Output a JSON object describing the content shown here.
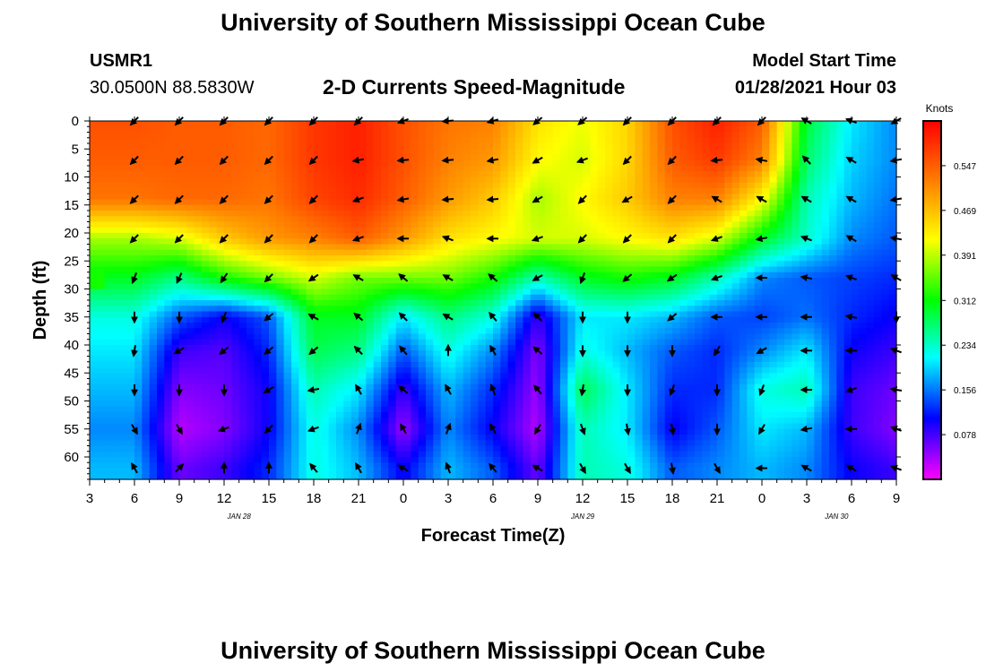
{
  "page": {
    "title_top": "University of Southern Mississippi Ocean Cube",
    "title_bottom": "University of Southern Mississippi Ocean Cube",
    "station_id": "USMR1",
    "station_coords": "30.0500N 88.5830W",
    "plot_title": "2-D Currents Speed-Magnitude",
    "model_start_label": "Model Start Time",
    "model_start_value": "01/28/2021 Hour 03"
  },
  "colors": {
    "arrow": "#000000",
    "colormap": [
      "#ff00ff",
      "#0000ff",
      "#00ffff",
      "#00ff00",
      "#ffff00",
      "#ff8000",
      "#ff0000"
    ]
  },
  "chart_data": {
    "type": "heatmap",
    "title": "2-D Currents Speed-Magnitude",
    "xlabel": "Forecast Time(Z)",
    "ylabel": "Depth (ft)",
    "x_range": [
      0,
      54
    ],
    "y_range": [
      0,
      64
    ],
    "x_ticks": [
      0,
      3,
      6,
      9,
      12,
      15,
      18,
      21,
      24,
      27,
      30,
      33,
      36,
      39,
      42,
      45,
      48,
      51,
      54
    ],
    "x_tick_labels": [
      "3",
      "6",
      "9",
      "12",
      "15",
      "18",
      "21",
      "0",
      "3",
      "6",
      "9",
      "12",
      "15",
      "18",
      "21",
      "0",
      "3",
      "6",
      "9"
    ],
    "y_ticks": [
      0,
      5,
      10,
      15,
      20,
      25,
      30,
      35,
      40,
      45,
      50,
      55,
      60
    ],
    "y_tick_labels": [
      "0",
      "5",
      "10",
      "15",
      "20",
      "25",
      "30",
      "35",
      "40",
      "45",
      "50",
      "55",
      "60"
    ],
    "date_labels": [
      {
        "x_hours": 10,
        "text": "JAN 28"
      },
      {
        "x_hours": 33,
        "text": "JAN 29"
      },
      {
        "x_hours": 50,
        "text": "JAN 30"
      }
    ],
    "colorbar": {
      "unit": "Knots",
      "range": [
        0,
        0.625
      ],
      "ticks": [
        0.078,
        0.156,
        0.234,
        0.312,
        0.391,
        0.469,
        0.547
      ],
      "tick_labels": [
        "0.078",
        "0.156",
        "0.234",
        "0.312",
        "0.391",
        "0.469",
        "0.547"
      ]
    },
    "depth_levels": [
      0,
      7,
      14,
      21,
      28,
      35,
      41,
      48,
      55,
      62
    ],
    "column_hours": [
      3,
      6,
      9,
      12,
      15,
      18,
      21,
      24,
      27,
      30,
      33,
      36,
      39,
      42,
      45,
      48,
      51,
      54
    ],
    "speed_knots": [
      [
        0.56,
        0.55,
        0.55,
        0.54,
        0.58,
        0.6,
        0.56,
        0.53,
        0.52,
        0.44,
        0.41,
        0.45,
        0.56,
        0.6,
        0.55,
        0.29,
        0.2,
        0.16
      ],
      [
        0.55,
        0.55,
        0.55,
        0.54,
        0.58,
        0.6,
        0.56,
        0.52,
        0.5,
        0.42,
        0.4,
        0.45,
        0.55,
        0.58,
        0.52,
        0.27,
        0.19,
        0.16
      ],
      [
        0.53,
        0.54,
        0.54,
        0.53,
        0.57,
        0.59,
        0.55,
        0.5,
        0.46,
        0.38,
        0.42,
        0.46,
        0.52,
        0.52,
        0.42,
        0.24,
        0.18,
        0.15
      ],
      [
        0.38,
        0.4,
        0.46,
        0.5,
        0.52,
        0.55,
        0.5,
        0.44,
        0.42,
        0.4,
        0.4,
        0.42,
        0.44,
        0.4,
        0.3,
        0.23,
        0.16,
        0.14
      ],
      [
        0.3,
        0.26,
        0.32,
        0.36,
        0.4,
        0.36,
        0.36,
        0.36,
        0.32,
        0.24,
        0.3,
        0.32,
        0.3,
        0.24,
        0.16,
        0.14,
        0.13,
        0.12
      ],
      [
        0.22,
        0.14,
        0.1,
        0.14,
        0.3,
        0.3,
        0.2,
        0.26,
        0.22,
        0.08,
        0.2,
        0.2,
        0.18,
        0.14,
        0.13,
        0.15,
        0.12,
        0.1
      ],
      [
        0.2,
        0.08,
        0.07,
        0.12,
        0.28,
        0.26,
        0.14,
        0.22,
        0.16,
        0.05,
        0.22,
        0.18,
        0.14,
        0.12,
        0.16,
        0.2,
        0.1,
        0.08
      ],
      [
        0.18,
        0.05,
        0.06,
        0.1,
        0.24,
        0.2,
        0.08,
        0.18,
        0.12,
        0.04,
        0.28,
        0.2,
        0.12,
        0.12,
        0.22,
        0.24,
        0.08,
        0.06
      ],
      [
        0.16,
        0.03,
        0.05,
        0.1,
        0.22,
        0.16,
        0.04,
        0.16,
        0.1,
        0.03,
        0.24,
        0.2,
        0.1,
        0.14,
        0.2,
        0.18,
        0.08,
        0.05
      ],
      [
        0.18,
        0.06,
        0.08,
        0.12,
        0.22,
        0.18,
        0.1,
        0.18,
        0.14,
        0.06,
        0.24,
        0.22,
        0.14,
        0.16,
        0.18,
        0.16,
        0.1,
        0.08
      ]
    ],
    "direction_deg": [
      [
        225,
        225,
        225,
        225,
        225,
        225,
        250,
        265,
        255,
        230,
        230,
        225,
        225,
        225,
        225,
        300,
        290,
        240
      ],
      [
        225,
        225,
        225,
        225,
        225,
        260,
        265,
        265,
        260,
        240,
        250,
        225,
        225,
        265,
        280,
        315,
        300,
        260
      ],
      [
        225,
        225,
        225,
        225,
        225,
        250,
        260,
        265,
        265,
        240,
        225,
        240,
        225,
        300,
        300,
        300,
        300,
        260
      ],
      [
        225,
        225,
        225,
        225,
        225,
        250,
        270,
        290,
        270,
        250,
        225,
        225,
        225,
        250,
        260,
        290,
        300,
        280
      ],
      [
        200,
        205,
        215,
        225,
        235,
        300,
        310,
        300,
        310,
        240,
        200,
        230,
        235,
        250,
        270,
        280,
        290,
        300
      ],
      [
        180,
        180,
        200,
        230,
        300,
        310,
        315,
        300,
        320,
        315,
        180,
        180,
        230,
        270,
        270,
        270,
        280,
        180
      ],
      [
        190,
        240,
        230,
        230,
        230,
        315,
        320,
        0,
        330,
        310,
        180,
        180,
        180,
        210,
        240,
        270,
        270,
        290
      ],
      [
        180,
        180,
        180,
        240,
        260,
        330,
        310,
        330,
        340,
        320,
        190,
        180,
        200,
        180,
        200,
        270,
        250,
        280
      ],
      [
        150,
        150,
        250,
        225,
        250,
        20,
        330,
        20,
        330,
        210,
        160,
        170,
        170,
        180,
        210,
        260,
        270,
        290
      ],
      [
        330,
        45,
        0,
        0,
        320,
        330,
        300,
        340,
        320,
        300,
        150,
        150,
        170,
        150,
        270,
        300,
        300,
        290
      ]
    ]
  }
}
